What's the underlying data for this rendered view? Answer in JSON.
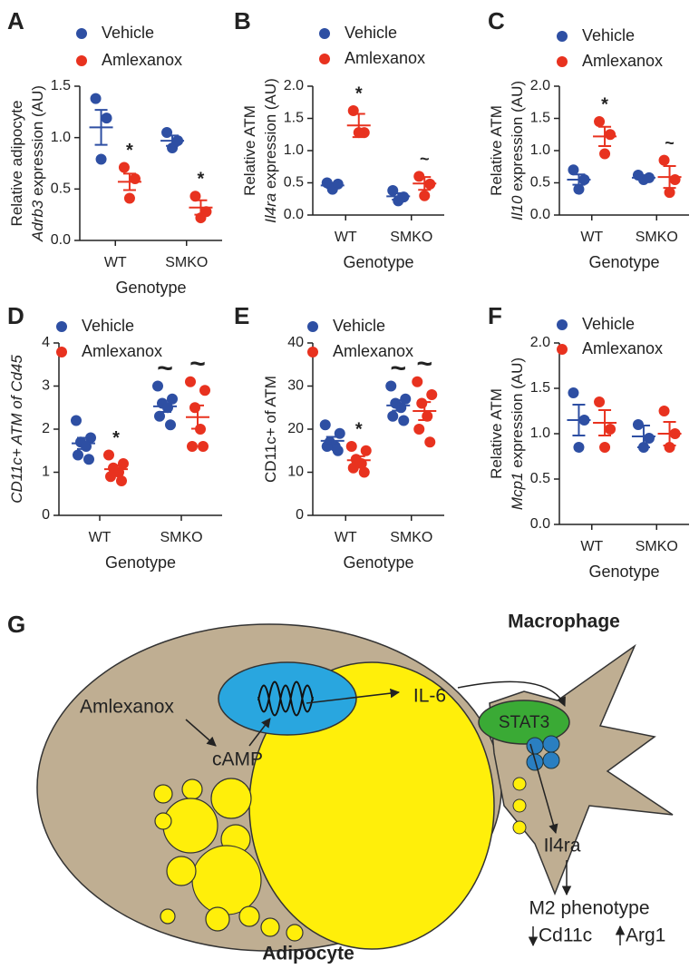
{
  "chart_data": [
    {
      "type": "dot",
      "panel": "A",
      "xlabel": "Genotype",
      "ylabel": [
        [
          {
            "text": "Relative adipocyte"
          }
        ],
        [
          {
            "text": "Adrb3",
            "italic": true
          },
          {
            "text": " expression (AU)"
          }
        ]
      ],
      "categories": [
        "WT",
        "SMKO"
      ],
      "series": [
        {
          "name": "Vehicle",
          "color": "#2e4fa3",
          "points": [
            [
              1.38,
              1.19,
              0.79
            ],
            [
              1.05,
              0.97,
              0.9
            ]
          ],
          "values": [
            1.1,
            0.97
          ],
          "errors": [
            0.17,
            0.05
          ]
        },
        {
          "name": "Amlexanox",
          "color": "#e8321f",
          "points": [
            [
              0.71,
              0.6,
              0.41
            ],
            [
              0.43,
              0.28,
              0.22
            ]
          ],
          "values": [
            0.57,
            0.32
          ],
          "errors": [
            0.08,
            0.07
          ]
        }
      ],
      "ylim": [
        0,
        1.5
      ],
      "yticks": [
        {
          "value": 0,
          "label": "0.0"
        },
        0.5,
        {
          "value": 1,
          "label": "1.0"
        },
        1.5
      ],
      "annotations": [
        {
          "series": 1,
          "category": 0,
          "text": "*"
        },
        {
          "series": 1,
          "category": 1,
          "text": "*"
        }
      ]
    },
    {
      "type": "dot",
      "panel": "B",
      "xlabel": "Genotype",
      "ylabel": [
        [
          {
            "text": "Relative ATM"
          }
        ],
        [
          {
            "text": "Il4ra",
            "italic": true
          },
          {
            "text": " expression (AU)"
          }
        ]
      ],
      "categories": [
        "WT",
        "SMKO"
      ],
      "series": [
        {
          "name": "Vehicle",
          "color": "#2e4fa3",
          "points": [
            [
              0.5,
              0.48,
              0.4
            ],
            [
              0.38,
              0.28,
              0.22
            ]
          ],
          "values": [
            0.46,
            0.29
          ],
          "errors": [
            0.04,
            0.05
          ]
        },
        {
          "name": "Amlexanox",
          "color": "#e8321f",
          "points": [
            [
              1.62,
              1.28,
              1.28
            ],
            [
              0.6,
              0.48,
              0.3
            ]
          ],
          "values": [
            1.39,
            0.49
          ],
          "errors": [
            0.18,
            0.1
          ]
        }
      ],
      "ylim": [
        0,
        2
      ],
      "yticks": [
        {
          "value": 0,
          "label": "0.0"
        },
        0.5,
        {
          "value": 1,
          "label": "1.0"
        },
        1.5,
        {
          "value": 2,
          "label": "2.0"
        }
      ],
      "annotations": [
        {
          "series": 1,
          "category": 0,
          "text": "*"
        },
        {
          "series": 1,
          "category": 1,
          "text": "~"
        }
      ]
    },
    {
      "type": "dot",
      "panel": "C",
      "xlabel": "Genotype",
      "ylabel": [
        [
          {
            "text": "Relative ATM"
          }
        ],
        [
          {
            "text": "Il10",
            "italic": true
          },
          {
            "text": " expression (AU)"
          }
        ]
      ],
      "categories": [
        "WT",
        "SMKO"
      ],
      "series": [
        {
          "name": "Vehicle",
          "color": "#2e4fa3",
          "points": [
            [
              0.7,
              0.55,
              0.4
            ],
            [
              0.62,
              0.58,
              0.55
            ]
          ],
          "values": [
            0.55,
            0.58
          ],
          "errors": [
            0.08,
            0.03
          ]
        },
        {
          "name": "Amlexanox",
          "color": "#e8321f",
          "points": [
            [
              1.45,
              1.25,
              0.95
            ],
            [
              0.85,
              0.55,
              0.35
            ]
          ],
          "values": [
            1.22,
            0.59
          ],
          "errors": [
            0.15,
            0.17
          ]
        }
      ],
      "ylim": [
        0,
        2
      ],
      "yticks": [
        {
          "value": 0,
          "label": "0.0"
        },
        0.5,
        {
          "value": 1,
          "label": "1.0"
        },
        1.5,
        {
          "value": 2,
          "label": "2.0"
        }
      ],
      "annotations": [
        {
          "series": 1,
          "category": 0,
          "text": "*"
        },
        {
          "series": 1,
          "category": 1,
          "text": "~"
        }
      ]
    },
    {
      "type": "dot",
      "panel": "D",
      "xlabel": "Genotype",
      "ylabel": [
        [
          {
            "text": "CD11c+ ATM of Cd45",
            "italic": true
          }
        ]
      ],
      "categories": [
        "WT",
        "SMKO"
      ],
      "series": [
        {
          "name": "Vehicle",
          "color": "#2e4fa3",
          "points": [
            [
              2.2,
              1.8,
              1.7,
              1.6,
              1.4,
              1.3
            ],
            [
              3.0,
              2.7,
              2.6,
              2.5,
              2.3,
              2.1
            ]
          ],
          "values": [
            1.67,
            2.53
          ],
          "errors": [
            0.13,
            0.13
          ]
        },
        {
          "name": "Amlexanox",
          "color": "#e8321f",
          "points": [
            [
              1.4,
              1.2,
              1.1,
              1.0,
              0.9,
              0.8
            ],
            [
              3.1,
              2.9,
              2.5,
              2.0,
              1.6,
              1.6
            ]
          ],
          "values": [
            1.07,
            2.28
          ],
          "errors": [
            0.09,
            0.27
          ]
        }
      ],
      "ylim": [
        0,
        4
      ],
      "yticks": [
        0,
        1,
        2,
        3,
        4
      ],
      "annotations": [
        {
          "series": 1,
          "category": 0,
          "text": "*"
        },
        {
          "series": 0,
          "category": 1,
          "text": "~"
        },
        {
          "series": 1,
          "category": 1,
          "text": "~"
        }
      ]
    },
    {
      "type": "dot",
      "panel": "E",
      "xlabel": "Genotype",
      "ylabel": [
        [
          {
            "text": "CD11c+ of ATM"
          }
        ]
      ],
      "categories": [
        "WT",
        "SMKO"
      ],
      "series": [
        {
          "name": "Vehicle",
          "color": "#2e4fa3",
          "points": [
            [
              21,
              19,
              17,
              16,
              16,
              15
            ],
            [
              30,
              27,
              26,
              25,
              23,
              22
            ]
          ],
          "values": [
            17.3,
            25.5
          ],
          "errors": [
            0.9,
            1.2
          ]
        },
        {
          "name": "Amlexanox",
          "color": "#e8321f",
          "points": [
            [
              16,
              15,
              13,
              12,
              11,
              10
            ],
            [
              31,
              28,
              26,
              23,
              20,
              17
            ]
          ],
          "values": [
            12.8,
            24.2
          ],
          "errors": [
            0.9,
            2.1
          ]
        }
      ],
      "ylim": [
        0,
        40
      ],
      "yticks": [
        0,
        10,
        20,
        30,
        40
      ],
      "annotations": [
        {
          "series": 1,
          "category": 0,
          "text": "*"
        },
        {
          "series": 0,
          "category": 1,
          "text": "~"
        },
        {
          "series": 1,
          "category": 1,
          "text": "~"
        }
      ]
    },
    {
      "type": "dot",
      "panel": "F",
      "xlabel": "Genotype",
      "ylabel": [
        [
          {
            "text": "Relative ATM"
          }
        ],
        [
          {
            "text": "Mcp1",
            "italic": true
          },
          {
            "text": " expression (AU)"
          }
        ]
      ],
      "categories": [
        "WT",
        "SMKO"
      ],
      "series": [
        {
          "name": "Vehicle",
          "color": "#2e4fa3",
          "points": [
            [
              1.45,
              1.15,
              0.85
            ],
            [
              1.1,
              0.95,
              0.85
            ]
          ],
          "values": [
            1.15,
            0.97
          ],
          "errors": [
            0.17,
            0.12
          ]
        },
        {
          "name": "Amlexanox",
          "color": "#e8321f",
          "points": [
            [
              1.35,
              1.05,
              0.85
            ],
            [
              1.25,
              1.0,
              0.85
            ]
          ],
          "values": [
            1.12,
            1.0
          ],
          "errors": [
            0.14,
            0.13
          ]
        }
      ],
      "ylim": [
        0,
        2
      ],
      "yticks": [
        {
          "value": 0,
          "label": "0.0"
        },
        0.5,
        {
          "value": 1,
          "label": "1.0"
        },
        1.5,
        {
          "value": 2,
          "label": "2.0"
        }
      ],
      "annotations": []
    }
  ],
  "diagram": {
    "panel": "G",
    "drug": "Amlexanox",
    "messenger": "cAMP",
    "cytokine": "IL-6",
    "cell_right": "Macrophage",
    "factor": "STAT3",
    "receptor": "Il4ra",
    "outcome": "M2 phenotype",
    "down": "Cd11c",
    "up": "Arg1",
    "cell_left": "Adipocyte"
  }
}
